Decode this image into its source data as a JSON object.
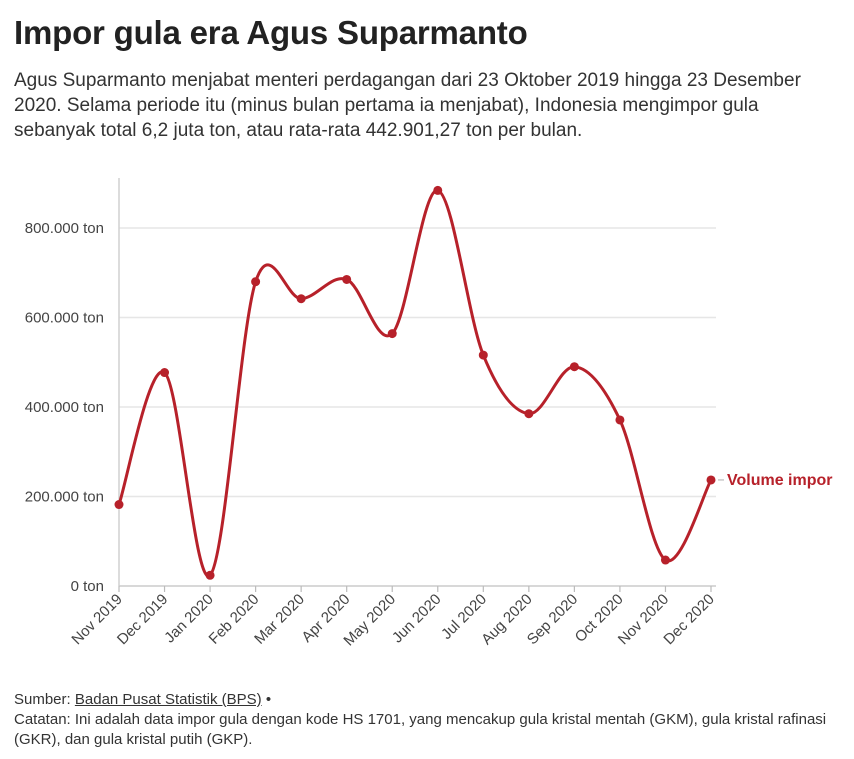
{
  "header": {
    "title": "Impor gula era Agus Suparmanto",
    "subtitle": "Agus Suparmanto menjabat menteri perdagangan dari 23 Oktober 2019 hingga 23 Desember 2020. Selama periode itu (minus bulan pertama ia menjabat), Indonesia mengimpor gula sebanyak total 6,2 juta ton, atau rata-rata 442.901,27 ton per bulan."
  },
  "chart_data": {
    "type": "line",
    "title": "Impor gula era Agus Suparmanto",
    "xlabel": "",
    "ylabel": "",
    "categories": [
      "Nov 2019",
      "Dec 2019",
      "Jan 2020",
      "Feb 2020",
      "Mar 2020",
      "Apr 2020",
      "May 2020",
      "Jun 2020",
      "Jul 2020",
      "Aug 2020",
      "Sep 2020",
      "Oct 2020",
      "Nov 2020",
      "Dec 2020"
    ],
    "series": [
      {
        "name": "Volume impor",
        "color": "#b7212a",
        "values": [
          182000,
          477000,
          24000,
          680000,
          642000,
          685000,
          564000,
          884000,
          516000,
          385000,
          490000,
          371000,
          58000,
          237000
        ]
      }
    ],
    "ylim": [
      0,
      880000
    ],
    "yticks": [
      0,
      200000,
      400000,
      600000,
      800000
    ],
    "ytick_labels": [
      "0 ton",
      "200.000 ton",
      "400.000 ton",
      "600.000 ton",
      "800.000 ton"
    ],
    "grid": true,
    "legend": "end-of-line label"
  },
  "footer": {
    "source_label": "Sumber:",
    "source_link": "Badan Pusat Statistik (BPS)",
    "source_bullet": "•",
    "note": "Catatan: Ini adalah data impor gula dengan kode HS 1701, yang mencakup gula kristal mentah (GKM), gula kristal rafinasi (GKR), dan gula kristal putih (GKP)."
  }
}
